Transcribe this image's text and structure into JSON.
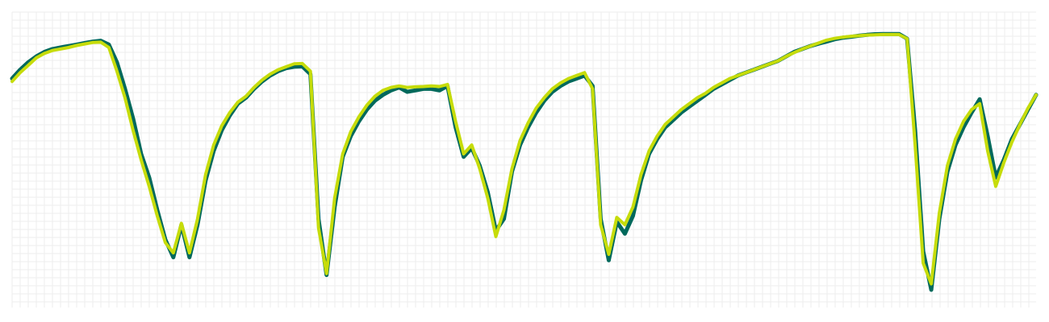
{
  "chart_data": {
    "type": "line",
    "title": "",
    "xlabel": "",
    "ylabel": "",
    "grid": true,
    "legend": "none",
    "xlim": [
      0,
      127
    ],
    "ylim": [
      0,
      100
    ],
    "colors": {
      "background": "#ffffff",
      "grid": "#eeeeee",
      "series_dark": "#00695c",
      "series_light": "#c6dc0a"
    },
    "series": [
      {
        "color": "#00695c",
        "points": [
          [
            0,
            77.5
          ],
          [
            1,
            80.5
          ],
          [
            2,
            83
          ],
          [
            3,
            85
          ],
          [
            4,
            86.5
          ],
          [
            5,
            87.5
          ],
          [
            6,
            88
          ],
          [
            7,
            88.5
          ],
          [
            8,
            89
          ],
          [
            9,
            89.5
          ],
          [
            10,
            90
          ],
          [
            11,
            90.3
          ],
          [
            12,
            89
          ],
          [
            13,
            83
          ],
          [
            14,
            74
          ],
          [
            15,
            64
          ],
          [
            16,
            52
          ],
          [
            17,
            44
          ],
          [
            18,
            33
          ],
          [
            19,
            23
          ],
          [
            20,
            17
          ],
          [
            21,
            28
          ],
          [
            22,
            17
          ],
          [
            23,
            28
          ],
          [
            24,
            43
          ],
          [
            25,
            53
          ],
          [
            26,
            60
          ],
          [
            27,
            65
          ],
          [
            28,
            69
          ],
          [
            29,
            71
          ],
          [
            30,
            74
          ],
          [
            31,
            76.5
          ],
          [
            32,
            78.5
          ],
          [
            33,
            80
          ],
          [
            34,
            81
          ],
          [
            35,
            81.5
          ],
          [
            36,
            81.6
          ],
          [
            37,
            79
          ],
          [
            38,
            30
          ],
          [
            39,
            11
          ],
          [
            40,
            34
          ],
          [
            41,
            51
          ],
          [
            42,
            58
          ],
          [
            43,
            63
          ],
          [
            44,
            67
          ],
          [
            45,
            70
          ],
          [
            46,
            72
          ],
          [
            47,
            73.5
          ],
          [
            48,
            74.5
          ],
          [
            49,
            73
          ],
          [
            50,
            73.5
          ],
          [
            51,
            74
          ],
          [
            52,
            74
          ],
          [
            53,
            73.5
          ],
          [
            54,
            75
          ],
          [
            55,
            61
          ],
          [
            56,
            51
          ],
          [
            57,
            54
          ],
          [
            58,
            48
          ],
          [
            59,
            39
          ],
          [
            60,
            26
          ],
          [
            61,
            30
          ],
          [
            62,
            46
          ],
          [
            63,
            55
          ],
          [
            64,
            61
          ],
          [
            65,
            66
          ],
          [
            66,
            70
          ],
          [
            67,
            73
          ],
          [
            68,
            75
          ],
          [
            69,
            76.5
          ],
          [
            70,
            77.5
          ],
          [
            71,
            78.5
          ],
          [
            72,
            75
          ],
          [
            73,
            30
          ],
          [
            74,
            16
          ],
          [
            75,
            29
          ],
          [
            76,
            25
          ],
          [
            77,
            31
          ],
          [
            78,
            43
          ],
          [
            79,
            52
          ],
          [
            80,
            57
          ],
          [
            81,
            61
          ],
          [
            82,
            63.5
          ],
          [
            83,
            66
          ],
          [
            84,
            68
          ],
          [
            85,
            70
          ],
          [
            86,
            72
          ],
          [
            87,
            74
          ],
          [
            88,
            75.5
          ],
          [
            89,
            77
          ],
          [
            90,
            78.5
          ],
          [
            91,
            79.5
          ],
          [
            92,
            80.5
          ],
          [
            93,
            81.5
          ],
          [
            94,
            82.5
          ],
          [
            95,
            83.5
          ],
          [
            96,
            85
          ],
          [
            97,
            86.5
          ],
          [
            98,
            87.5
          ],
          [
            99,
            88.5
          ],
          [
            100,
            89.3
          ],
          [
            101,
            90
          ],
          [
            102,
            90.8
          ],
          [
            103,
            91.3
          ],
          [
            104,
            91.6
          ],
          [
            105,
            92
          ],
          [
            106,
            92.3
          ],
          [
            107,
            92.5
          ],
          [
            108,
            92.6
          ],
          [
            109,
            92.6
          ],
          [
            110,
            92.6
          ],
          [
            111,
            91
          ],
          [
            112,
            60
          ],
          [
            113,
            19
          ],
          [
            114,
            6
          ],
          [
            115,
            30
          ],
          [
            116,
            46
          ],
          [
            117,
            55
          ],
          [
            118,
            61
          ],
          [
            119,
            66
          ],
          [
            120,
            70.5
          ],
          [
            121,
            58
          ],
          [
            122,
            44
          ],
          [
            123,
            50
          ],
          [
            124,
            57
          ],
          [
            125,
            62
          ],
          [
            126,
            67
          ],
          [
            127,
            72
          ]
        ]
      },
      {
        "color": "#c6dc0a",
        "points": [
          [
            0,
            76.5
          ],
          [
            1,
            79.5
          ],
          [
            2,
            82
          ],
          [
            3,
            84.5
          ],
          [
            4,
            86
          ],
          [
            5,
            87
          ],
          [
            6,
            87.5
          ],
          [
            7,
            88
          ],
          [
            8,
            88.7
          ],
          [
            9,
            89.2
          ],
          [
            10,
            89.7
          ],
          [
            11,
            89.8
          ],
          [
            12,
            88
          ],
          [
            13,
            80
          ],
          [
            14,
            71
          ],
          [
            15,
            60
          ],
          [
            16,
            50
          ],
          [
            17,
            41
          ],
          [
            18,
            31
          ],
          [
            19,
            22
          ],
          [
            20,
            18.5
          ],
          [
            21,
            28.5
          ],
          [
            22,
            18.5
          ],
          [
            23,
            30
          ],
          [
            24,
            45
          ],
          [
            25,
            55
          ],
          [
            26,
            61.5
          ],
          [
            27,
            66
          ],
          [
            28,
            69.5
          ],
          [
            29,
            71.5
          ],
          [
            30,
            74.5
          ],
          [
            31,
            77
          ],
          [
            32,
            79
          ],
          [
            33,
            80.5
          ],
          [
            34,
            81.5
          ],
          [
            35,
            82.5
          ],
          [
            36,
            82.6
          ],
          [
            37,
            80
          ],
          [
            38,
            27
          ],
          [
            39,
            11.5
          ],
          [
            40,
            37
          ],
          [
            41,
            52
          ],
          [
            42,
            59.5
          ],
          [
            43,
            64.5
          ],
          [
            44,
            68.5
          ],
          [
            45,
            71.5
          ],
          [
            46,
            73.5
          ],
          [
            47,
            74.5
          ],
          [
            48,
            75
          ],
          [
            49,
            74.5
          ],
          [
            50,
            74.7
          ],
          [
            51,
            74.8
          ],
          [
            52,
            75
          ],
          [
            53,
            74.8
          ],
          [
            54,
            75.5
          ],
          [
            55,
            63
          ],
          [
            56,
            52
          ],
          [
            57,
            55
          ],
          [
            58,
            47
          ],
          [
            59,
            37
          ],
          [
            60,
            24
          ],
          [
            61,
            33
          ],
          [
            62,
            47
          ],
          [
            63,
            56.5
          ],
          [
            64,
            62.5
          ],
          [
            65,
            67.5
          ],
          [
            66,
            71
          ],
          [
            67,
            74
          ],
          [
            68,
            76
          ],
          [
            69,
            77.5
          ],
          [
            70,
            78.5
          ],
          [
            71,
            79.5
          ],
          [
            72,
            74
          ],
          [
            73,
            28
          ],
          [
            74,
            18
          ],
          [
            75,
            30.5
          ],
          [
            76,
            28
          ],
          [
            77,
            34
          ],
          [
            78,
            45
          ],
          [
            79,
            53
          ],
          [
            80,
            58
          ],
          [
            81,
            62
          ],
          [
            82,
            64.5
          ],
          [
            83,
            67
          ],
          [
            84,
            69
          ],
          [
            85,
            71
          ],
          [
            86,
            72.5
          ],
          [
            87,
            74.5
          ],
          [
            88,
            76
          ],
          [
            89,
            77.5
          ],
          [
            90,
            78.5
          ],
          [
            91,
            79.5
          ],
          [
            92,
            80.5
          ],
          [
            93,
            81.5
          ],
          [
            94,
            82.5
          ],
          [
            95,
            83.5
          ],
          [
            96,
            85
          ],
          [
            97,
            86.3
          ],
          [
            98,
            87.5
          ],
          [
            99,
            88.5
          ],
          [
            100,
            89.5
          ],
          [
            101,
            90.5
          ],
          [
            102,
            91.1
          ],
          [
            103,
            91.5
          ],
          [
            104,
            91.8
          ],
          [
            105,
            92
          ],
          [
            106,
            92.2
          ],
          [
            107,
            92.3
          ],
          [
            108,
            92.4
          ],
          [
            109,
            92.4
          ],
          [
            110,
            92.4
          ],
          [
            111,
            91
          ],
          [
            112,
            55
          ],
          [
            113,
            15
          ],
          [
            114,
            8
          ],
          [
            115,
            32
          ],
          [
            116,
            48
          ],
          [
            117,
            57
          ],
          [
            118,
            63
          ],
          [
            119,
            67
          ],
          [
            120,
            69
          ],
          [
            121,
            53
          ],
          [
            122,
            41
          ],
          [
            123,
            49
          ],
          [
            124,
            56
          ],
          [
            125,
            62
          ],
          [
            126,
            67.5
          ],
          [
            127,
            72
          ]
        ]
      }
    ]
  }
}
